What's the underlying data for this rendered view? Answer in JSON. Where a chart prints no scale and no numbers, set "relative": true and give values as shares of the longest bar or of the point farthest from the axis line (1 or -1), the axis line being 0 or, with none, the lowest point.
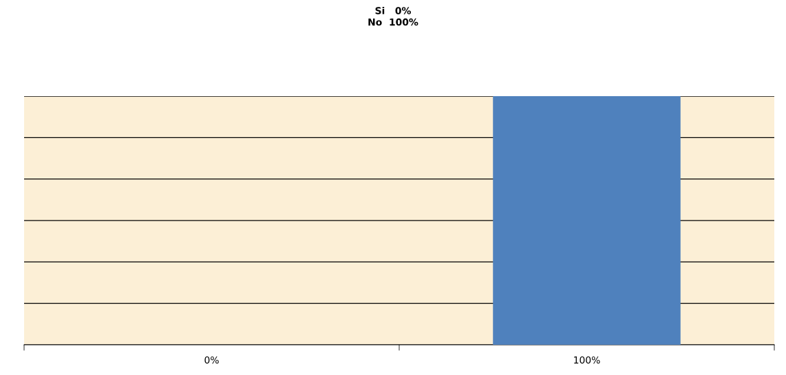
{
  "chart_data": {
    "type": "bar",
    "title": "Si   0%\nNo  100%",
    "categories": [
      "0%",
      "100%"
    ],
    "values": [
      0,
      1
    ],
    "color": "#4f81bd",
    "relative": true,
    "grid": "y",
    "legend": false
  }
}
